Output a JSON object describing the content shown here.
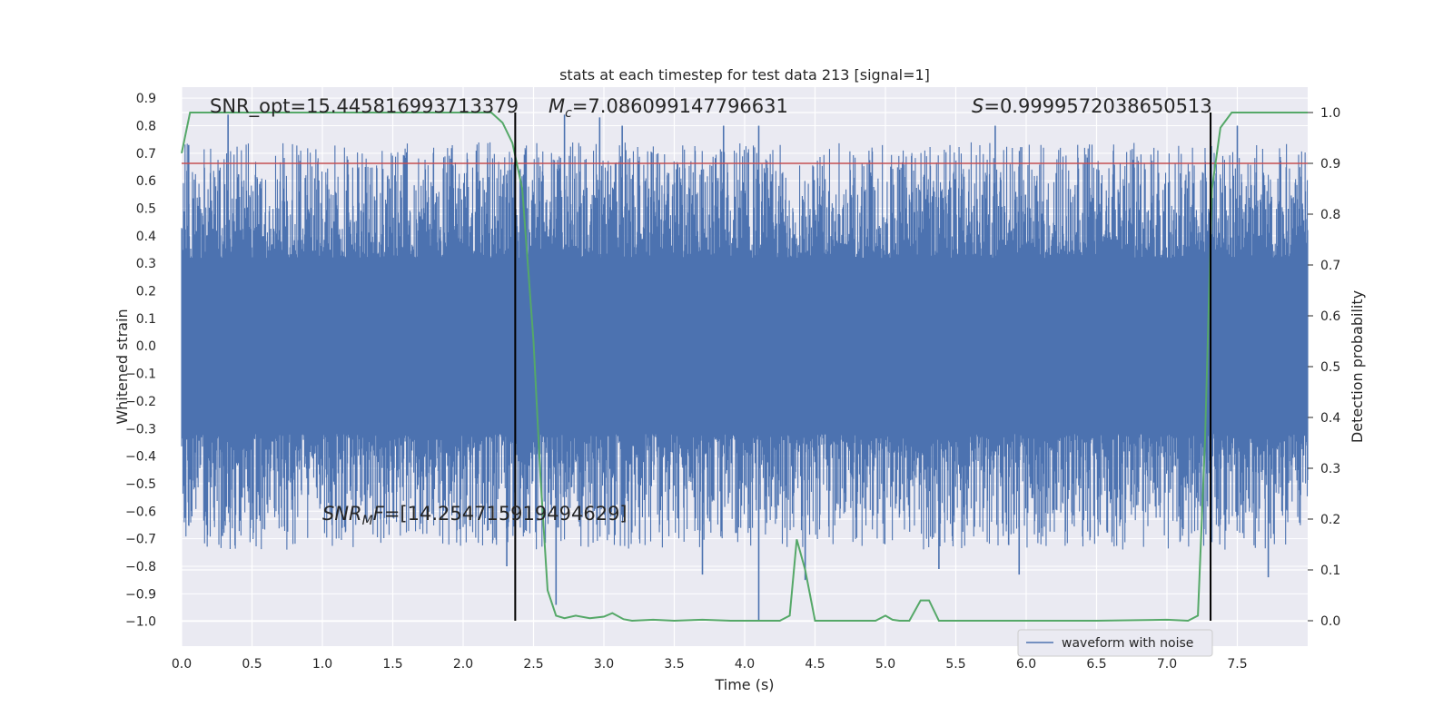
{
  "chart_data": {
    "type": "line",
    "title": "stats at each timestep for test data 213 [signal=1]",
    "xlabel": "Time (s)",
    "ylabel_left": "Whitened strain",
    "ylabel_right": "Detection probability",
    "xlim": [
      0.0,
      8.0
    ],
    "ylim_left": [
      -1.09,
      0.94
    ],
    "ylim_right": [
      -0.05,
      1.05
    ],
    "x_ticks": [
      "0.0",
      "0.5",
      "1.0",
      "1.5",
      "2.0",
      "2.5",
      "3.0",
      "3.5",
      "4.0",
      "4.5",
      "5.0",
      "5.5",
      "6.0",
      "6.5",
      "7.0",
      "7.5"
    ],
    "y_left_ticks": [
      "0.9",
      "0.8",
      "0.7",
      "0.6",
      "0.5",
      "0.4",
      "0.3",
      "0.2",
      "0.1",
      "0.0",
      "−0.1",
      "−0.2",
      "−0.3",
      "−0.4",
      "−0.5",
      "−0.6",
      "−0.7",
      "−0.8",
      "−0.9",
      "−1.0"
    ],
    "y_right_ticks": [
      "1.0",
      "0.9",
      "0.8",
      "0.7",
      "0.6",
      "0.5",
      "0.4",
      "0.3",
      "0.2",
      "0.1",
      "0.0"
    ],
    "grid": true,
    "legend": {
      "position": "lower-right",
      "entries": [
        "waveform with noise"
      ]
    },
    "annotations": {
      "snr_opt": "SNR_opt=15.445816993713379",
      "mc_symbol": "M",
      "mc_sub": "c",
      "mc_value": "=7.086099147796631",
      "s_symbol": "S",
      "s_value": "=0.9999572038650513",
      "snrmf_symbol": "SNR",
      "snrmf_sub": "M",
      "snrmf_symbol2": "F",
      "snrmf_value": "=[14.254715919494629]"
    },
    "threshold": {
      "name": "detection threshold",
      "value": 0.9,
      "axis": "right"
    },
    "vlines": [
      2.37,
      7.31
    ],
    "series": [
      {
        "name": "waveform with noise",
        "axis": "left",
        "style": "noise",
        "color": "#4c72b0",
        "x_range": [
          0.0,
          8.0
        ],
        "core_amplitude": 0.3,
        "extreme_spikes": [
          {
            "x": 0.33,
            "y": 0.84
          },
          {
            "x": 0.05,
            "y": 0.73
          },
          {
            "x": 2.72,
            "y": 0.84
          },
          {
            "x": 2.97,
            "y": 0.83
          },
          {
            "x": 3.13,
            "y": 0.8
          },
          {
            "x": 3.85,
            "y": 0.8
          },
          {
            "x": 4.1,
            "y": 0.8
          },
          {
            "x": 5.78,
            "y": 0.8
          },
          {
            "x": 7.5,
            "y": 0.8
          },
          {
            "x": 2.66,
            "y": -0.94
          },
          {
            "x": 2.31,
            "y": -0.8
          },
          {
            "x": 4.1,
            "y": -1.0
          },
          {
            "x": 4.43,
            "y": -0.85
          },
          {
            "x": 5.95,
            "y": -0.83
          },
          {
            "x": 7.72,
            "y": -0.84
          },
          {
            "x": 3.7,
            "y": -0.83
          },
          {
            "x": 0.29,
            "y": -0.69
          },
          {
            "x": 5.38,
            "y": -0.81
          }
        ]
      },
      {
        "name": "detection probability",
        "axis": "right",
        "color": "#55a868",
        "x": [
          0.0,
          0.06,
          0.5,
          1.0,
          1.5,
          2.0,
          2.2,
          2.28,
          2.35,
          2.42,
          2.5,
          2.55,
          2.6,
          2.66,
          2.72,
          2.8,
          2.9,
          3.0,
          3.06,
          3.14,
          3.2,
          3.35,
          3.5,
          3.7,
          3.9,
          4.1,
          4.25,
          4.32,
          4.37,
          4.43,
          4.5,
          4.6,
          4.8,
          4.93,
          5.0,
          5.05,
          5.1,
          5.17,
          5.25,
          5.31,
          5.38,
          5.5,
          6.0,
          6.5,
          7.0,
          7.15,
          7.22,
          7.27,
          7.32,
          7.38,
          7.46,
          7.6,
          8.0
        ],
        "y": [
          0.92,
          1.0,
          1.0,
          1.0,
          1.0,
          1.0,
          1.0,
          0.98,
          0.94,
          0.85,
          0.55,
          0.28,
          0.06,
          0.01,
          0.005,
          0.01,
          0.005,
          0.008,
          0.015,
          0.003,
          0.0,
          0.002,
          0.0,
          0.002,
          0.0,
          0.0,
          0.0,
          0.01,
          0.16,
          0.1,
          0.0,
          0.0,
          0.0,
          0.0,
          0.01,
          0.002,
          0.0,
          0.0,
          0.04,
          0.04,
          0.0,
          0.0,
          0.0,
          0.0,
          0.002,
          0.0,
          0.01,
          0.35,
          0.85,
          0.97,
          1.0,
          1.0,
          1.0
        ]
      }
    ]
  }
}
